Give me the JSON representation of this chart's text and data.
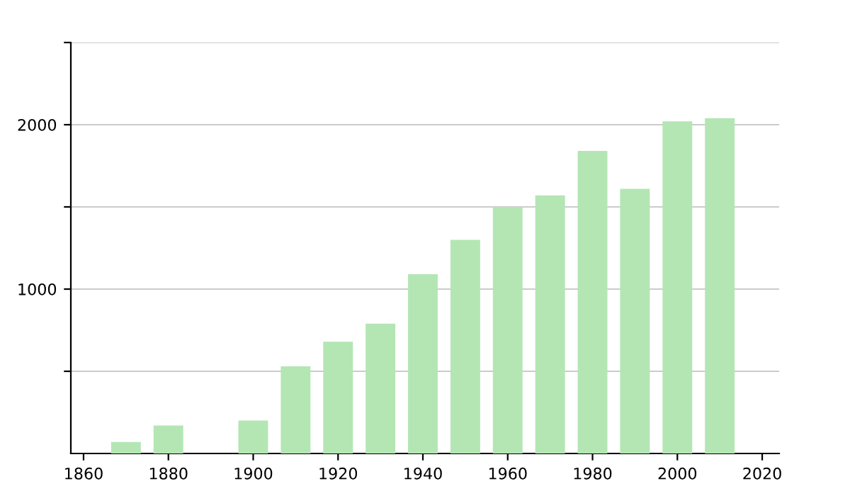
{
  "chart_data": {
    "type": "bar",
    "x": [
      1870,
      1880,
      1900,
      1910,
      1920,
      1930,
      1940,
      1950,
      1960,
      1970,
      1980,
      1990,
      2000,
      2010
    ],
    "values": [
      70,
      170,
      200,
      530,
      680,
      790,
      1090,
      1300,
      1500,
      1570,
      1840,
      1610,
      2020,
      2040
    ],
    "color": "#b3e6b3",
    "xlim": [
      1857,
      2024
    ],
    "xticks": [
      1860,
      1880,
      1900,
      1920,
      1940,
      1960,
      1980,
      2000,
      2020
    ],
    "ylim": [
      0,
      2500
    ],
    "yticks": [
      {
        "value": 500,
        "label": null
      },
      1000,
      {
        "value": 1500,
        "label": null
      },
      2000,
      {
        "value": 2500,
        "label": null
      }
    ],
    "grid": "y"
  }
}
